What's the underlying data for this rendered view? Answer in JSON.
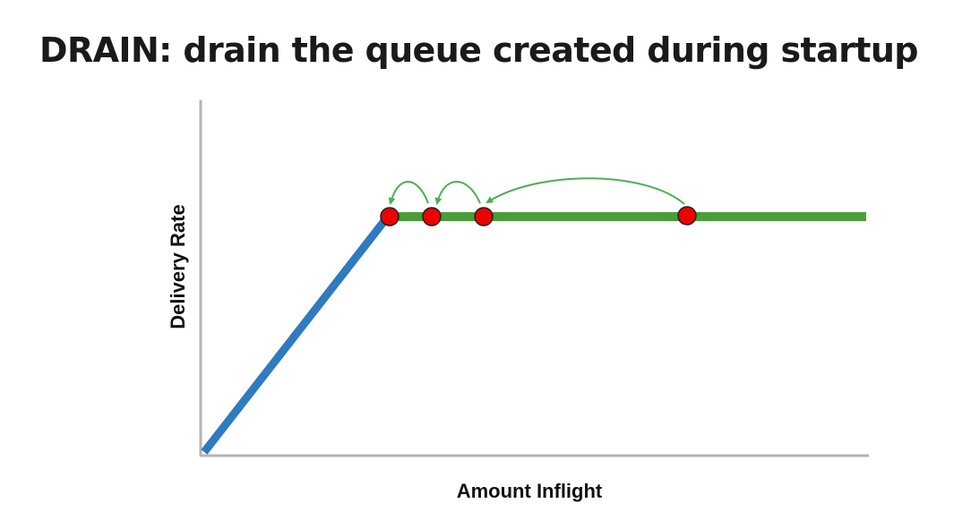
{
  "slide": {
    "title": "DRAIN: drain the queue created during startup"
  },
  "diagram": {
    "x_axis_label": "Amount Inflight",
    "y_axis_label": "Delivery Rate",
    "colors": {
      "axis": "#b3b3b3",
      "startup_ramp": "#2f7bbf",
      "plateau": "#4a9e3a",
      "arrow": "#4caf50",
      "point_fill": "#ee0000",
      "point_stroke": "#222222"
    },
    "points_count": 4
  }
}
